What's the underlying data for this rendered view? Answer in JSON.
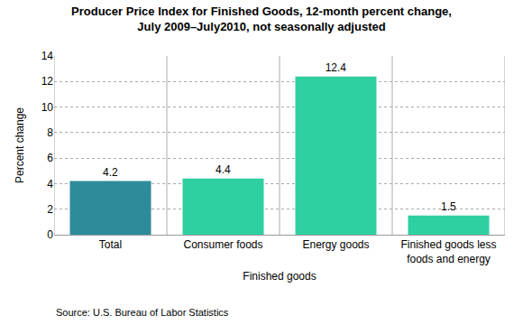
{
  "chart_data": {
    "type": "bar",
    "title": "Producer Price Index for Finished Goods, 12-month percent change,\nJuly 2009–July2010, not seasonally adjusted",
    "xlabel": "Finished goods",
    "ylabel": "Percent change",
    "categories": [
      "Total",
      "Consumer foods",
      "Energy goods",
      "Finished goods less\nfoods and energy"
    ],
    "values": [
      4.2,
      4.4,
      12.4,
      1.5
    ],
    "colors": [
      "#2e8b9a",
      "#2ecfa0",
      "#2ecfa0",
      "#2ecfa0"
    ],
    "ylim": [
      0,
      14
    ],
    "yticks": [
      0,
      2,
      4,
      6,
      8,
      10,
      12,
      14
    ],
    "grid": true,
    "data_labels": true,
    "annotations": [
      "Source: U.S. Bureau of Labor Statistics"
    ]
  }
}
